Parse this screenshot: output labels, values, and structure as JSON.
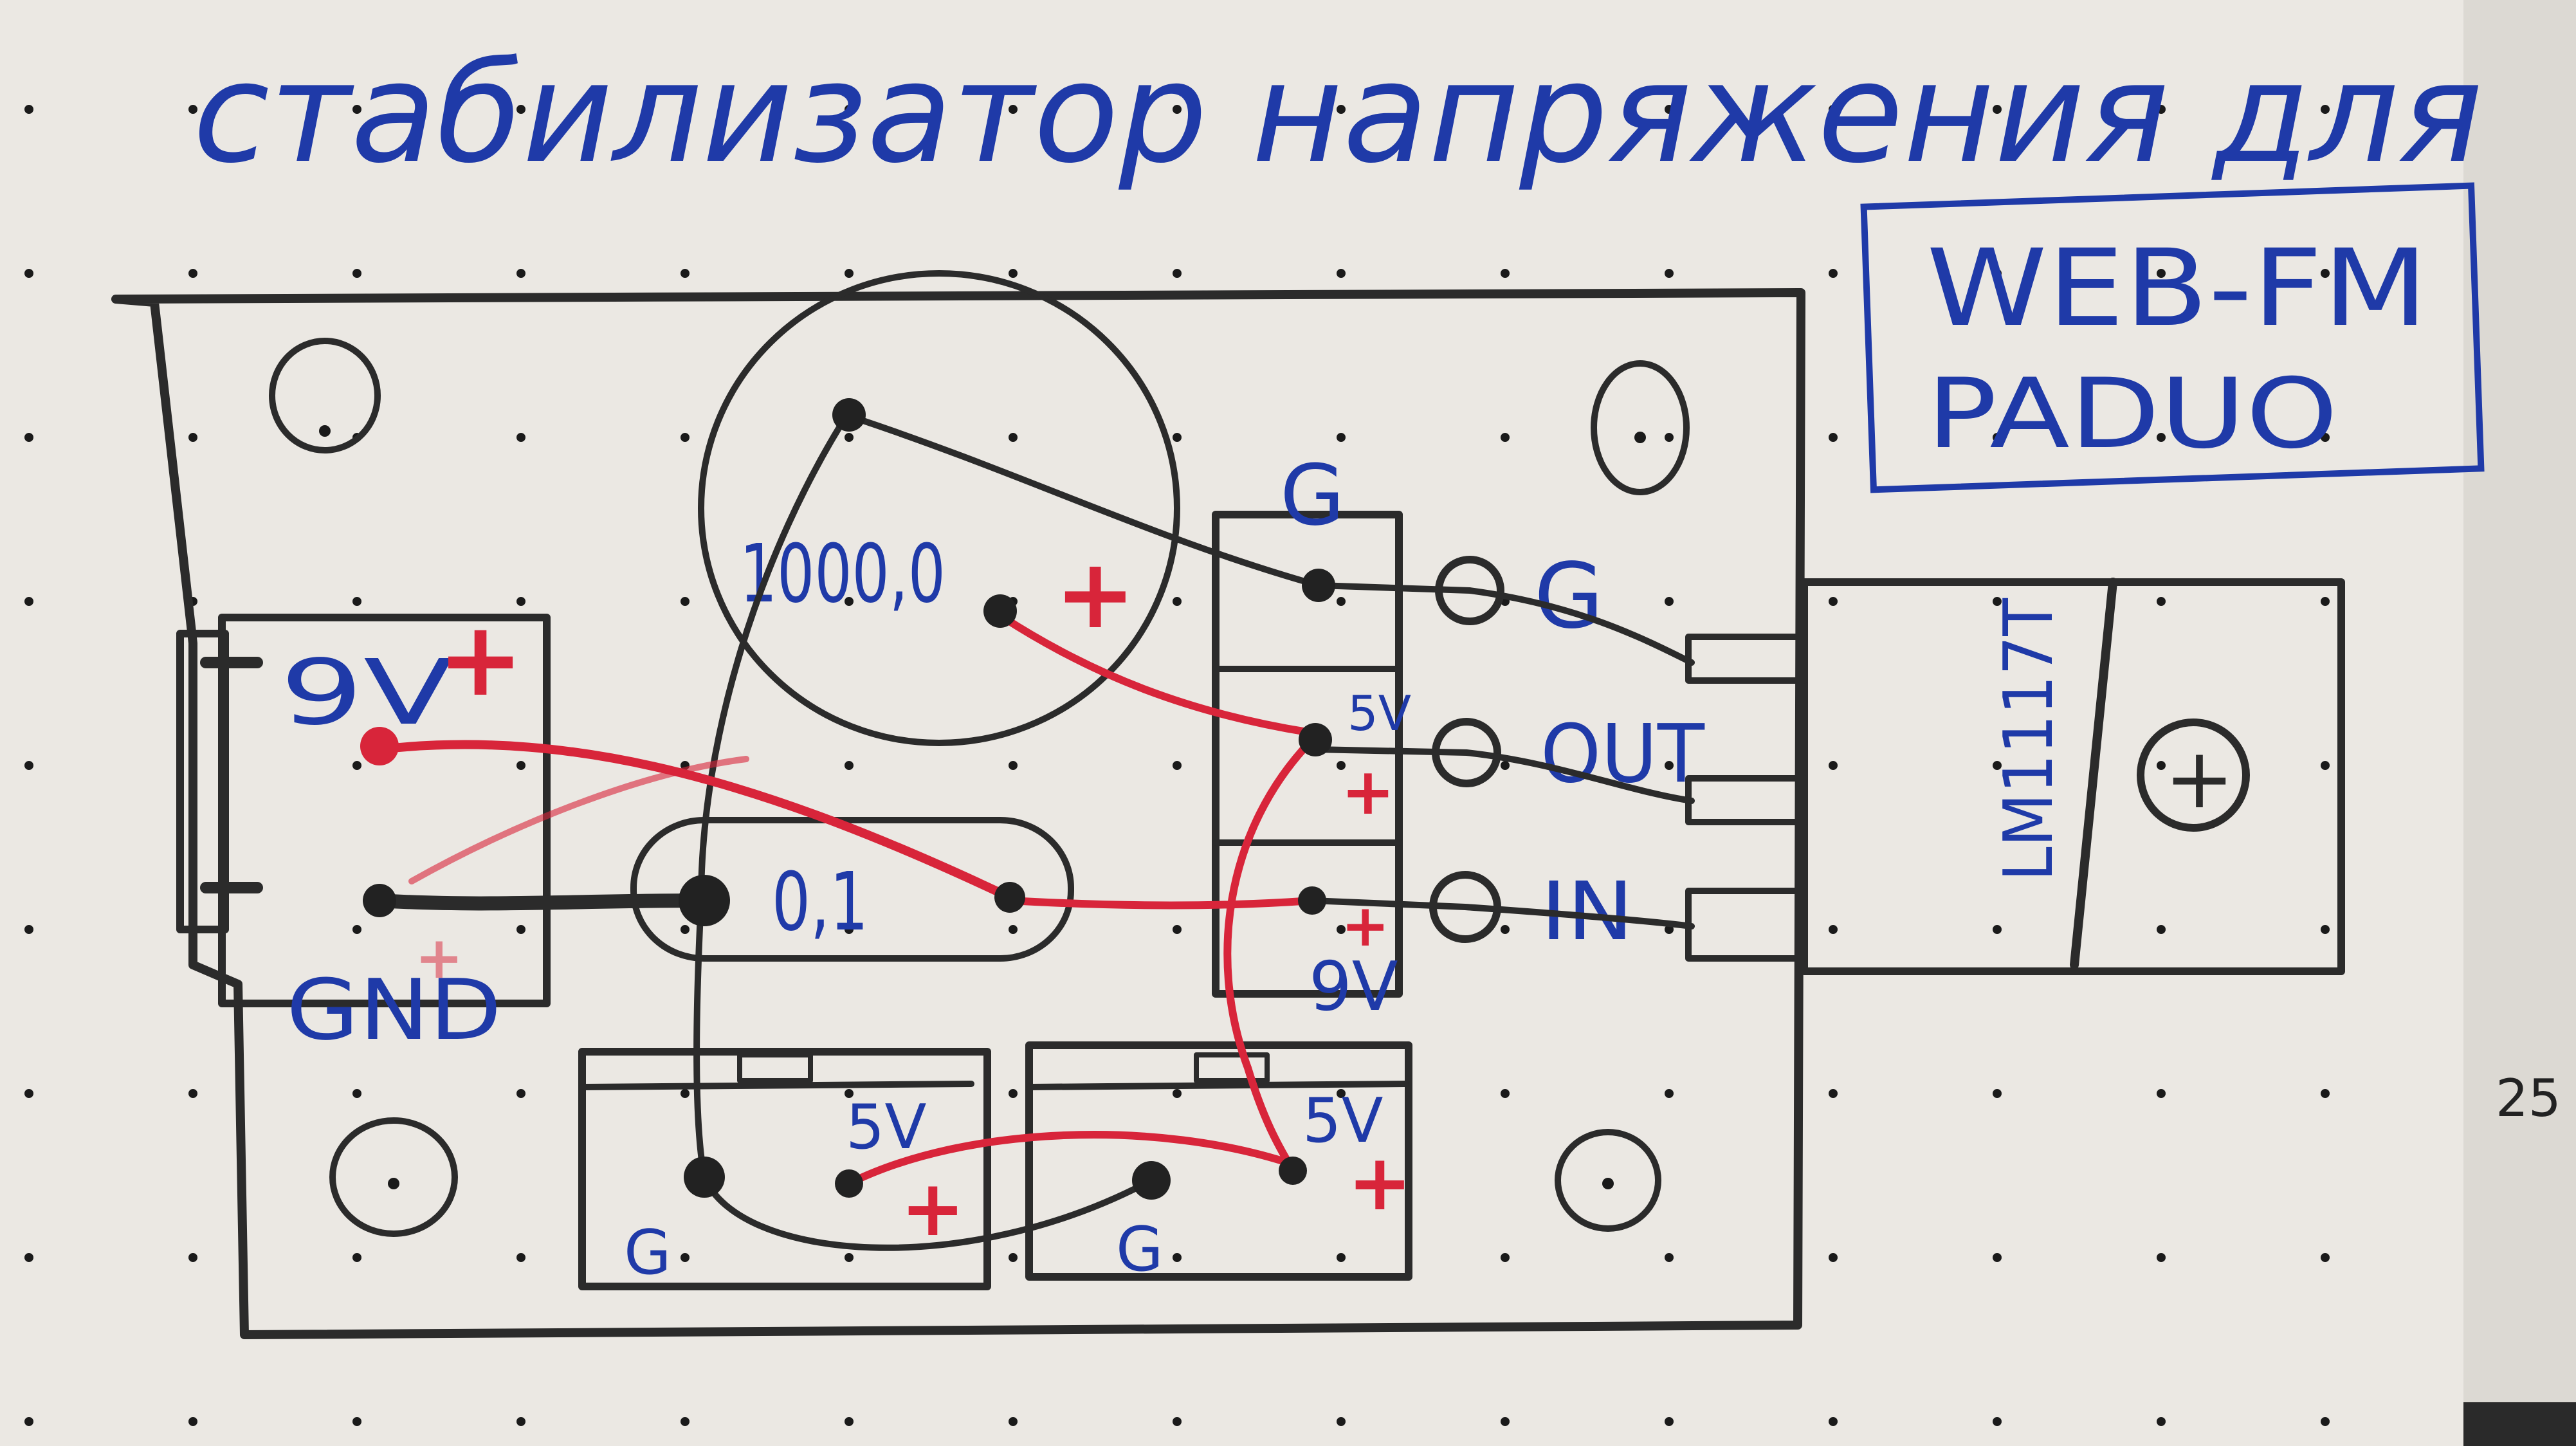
{
  "title": "стабилизатор напряжения для",
  "badge": {
    "line1": "WEB-FM",
    "line2": "PADUO"
  },
  "regulator": {
    "label": "LM1117T",
    "tab_symbol": "+"
  },
  "pins": {
    "g": "G",
    "out": "OUT",
    "in": "IN"
  },
  "capacitor_big": {
    "value": "1000,0",
    "polarity": "+"
  },
  "capacitor_small": {
    "value": "0,1"
  },
  "input_connector": {
    "plus_label": "9V",
    "gnd_label": "GND",
    "polarity": "+"
  },
  "strip": {
    "top": "G",
    "mid": "5V",
    "bottom": "9V",
    "polarity": "+"
  },
  "out_left": {
    "v": "5V",
    "g": "G",
    "polarity": "+"
  },
  "out_right": {
    "v": "5V",
    "g": "G",
    "polarity": "+"
  },
  "page_number": "25",
  "colors": {
    "pencil": "#2b2b2b",
    "ink": "#1f3aa8",
    "wire": "#d8253a",
    "paper": "#ebe8e3"
  }
}
